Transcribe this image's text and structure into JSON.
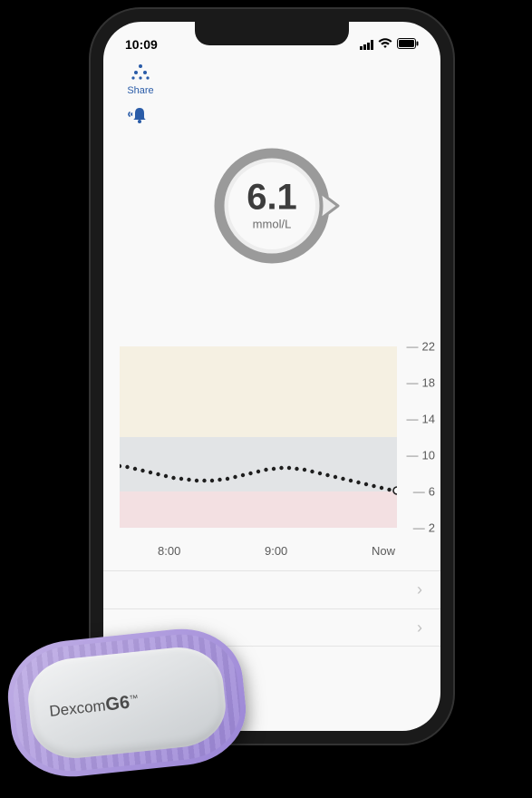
{
  "status": {
    "time": "10:09",
    "signal_strength": 4,
    "wifi": true,
    "battery_pct": 95
  },
  "header": {
    "share_label": "Share",
    "share_icon": "share-icon",
    "bell_icon": "bell-icon"
  },
  "glucose": {
    "value": "6.1",
    "unit": "mmol/L",
    "ring_color": "#9a9a9a",
    "ring_bg": "#e5e5e5",
    "pointer_angle_deg": 90
  },
  "chart": {
    "type": "line",
    "ylim": [
      2,
      22
    ],
    "yticks": [
      22,
      18,
      14,
      10,
      6,
      2
    ],
    "x_labels": [
      "8:00",
      "9:00",
      "Now"
    ],
    "bands": {
      "high": {
        "from": 14,
        "to": 22,
        "color": "#f5f0e2"
      },
      "target": {
        "from": 6,
        "to": 14,
        "color": "#e2e4e6"
      },
      "low": {
        "from": 2,
        "to": 6,
        "color": "#f3e0e2"
      }
    },
    "series": {
      "color": "#1e1e1e",
      "dot_radius": 2.2,
      "points_y": [
        8.8,
        8.7,
        8.5,
        8.3,
        8.1,
        7.9,
        7.7,
        7.5,
        7.4,
        7.3,
        7.2,
        7.2,
        7.2,
        7.3,
        7.4,
        7.6,
        7.8,
        8.0,
        8.2,
        8.4,
        8.5,
        8.6,
        8.6,
        8.5,
        8.4,
        8.2,
        8.0,
        7.8,
        7.6,
        7.4,
        7.2,
        7.0,
        6.8,
        6.6,
        6.4,
        6.2,
        6.1
      ]
    },
    "label_color": "#5a5a5a",
    "label_fontsize": 13,
    "background_color": "#f9f9f9"
  },
  "list_rows": [
    {
      "chevron": "›"
    },
    {
      "chevron": "›"
    }
  ],
  "device": {
    "brand": "Dexcom",
    "model": "G6",
    "shell_color": "#9a85d6",
    "face_color": "#e6e8ea"
  }
}
